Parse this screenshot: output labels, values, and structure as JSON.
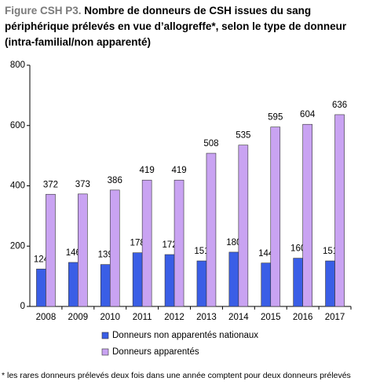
{
  "chart_data": {
    "type": "bar",
    "figure_label": "Figure CSH P3.",
    "title": "Nombre de donneurs de CSH issues du sang périphérique prélevés en vue d’allogreffe*, selon le type de donneur (intra-familial/non apparenté)",
    "categories": [
      "2008",
      "2009",
      "2010",
      "2011",
      "2012",
      "2013",
      "2014",
      "2015",
      "2016",
      "2017"
    ],
    "series": [
      {
        "name": "Donneurs non apparentés nationaux",
        "color": "#3a5ee6",
        "values": [
          124,
          146,
          139,
          178,
          172,
          151,
          180,
          144,
          160,
          151
        ]
      },
      {
        "name": "Donneurs apparentés",
        "color": "#c9a3f2",
        "values": [
          372,
          373,
          386,
          419,
          419,
          508,
          535,
          595,
          604,
          636
        ]
      }
    ],
    "ylim": [
      0,
      800
    ],
    "yticks": [
      0,
      200,
      400,
      600,
      800
    ],
    "grid": false,
    "legend": "bottom",
    "footnote": "* les rares donneurs prélevés deux fois dans une année comptent pour deux donneurs prélevés"
  }
}
